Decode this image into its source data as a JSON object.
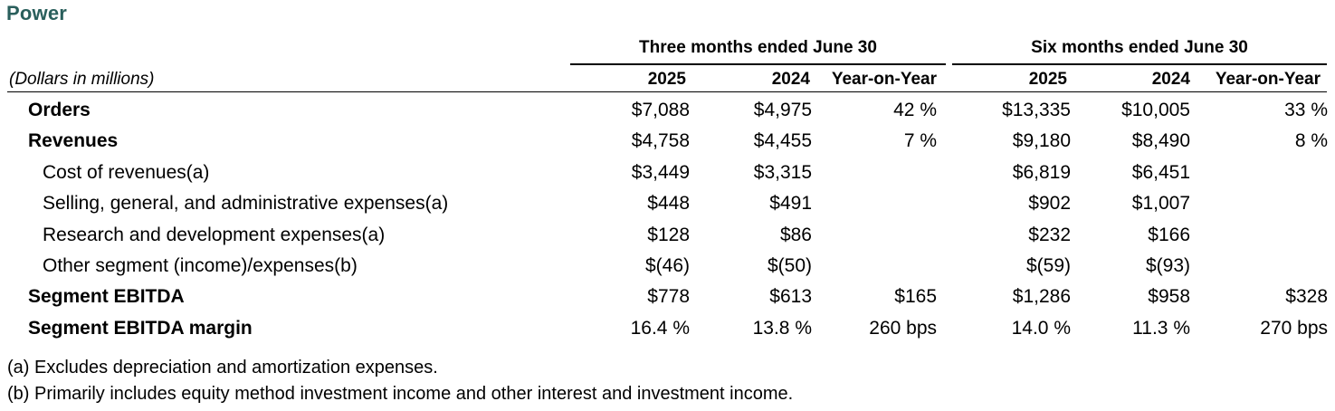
{
  "title": "Power",
  "units": "(Dollars in millions)",
  "groups": {
    "three": "Three months ended June 30",
    "six": "Six months ended June 30"
  },
  "columns": [
    "2025",
    "2024",
    "Year-on-Year",
    "2025",
    "2024",
    "Year-on-Year"
  ],
  "rows": [
    {
      "label": "Orders",
      "bold": true,
      "values": [
        "$7,088",
        "$4,975",
        "42 %",
        "$13,335",
        "$10,005",
        "33 %"
      ]
    },
    {
      "label": "Revenues",
      "bold": true,
      "values": [
        "$4,758",
        "$4,455",
        "7 %",
        "$9,180",
        "$8,490",
        "8 %"
      ]
    },
    {
      "label": "Cost of revenues(a)",
      "bold": false,
      "values": [
        "$3,449",
        "$3,315",
        "",
        "$6,819",
        "$6,451",
        ""
      ]
    },
    {
      "label": "Selling, general, and administrative expenses(a)",
      "bold": false,
      "values": [
        "$448",
        "$491",
        "",
        "$902",
        "$1,007",
        ""
      ]
    },
    {
      "label": "Research and development expenses(a)",
      "bold": false,
      "values": [
        "$128",
        "$86",
        "",
        "$232",
        "$166",
        ""
      ]
    },
    {
      "label": "Other segment (income)/expenses(b)",
      "bold": false,
      "values": [
        "$(46)",
        "$(50)",
        "",
        "$(59)",
        "$(93)",
        ""
      ]
    },
    {
      "label": "Segment EBITDA",
      "bold": true,
      "values": [
        "$778",
        "$613",
        "$165",
        "$1,286",
        "$958",
        "$328"
      ]
    },
    {
      "label": "Segment EBITDA margin",
      "bold": true,
      "values": [
        "16.4 %",
        "13.8 %",
        "260 bps",
        "14.0 %",
        "11.3 %",
        "270 bps"
      ]
    }
  ],
  "footnotes": {
    "a": "(a) Excludes depreciation and amortization expenses.",
    "b": "(b) Primarily includes equity method investment income and other interest and investment income."
  }
}
